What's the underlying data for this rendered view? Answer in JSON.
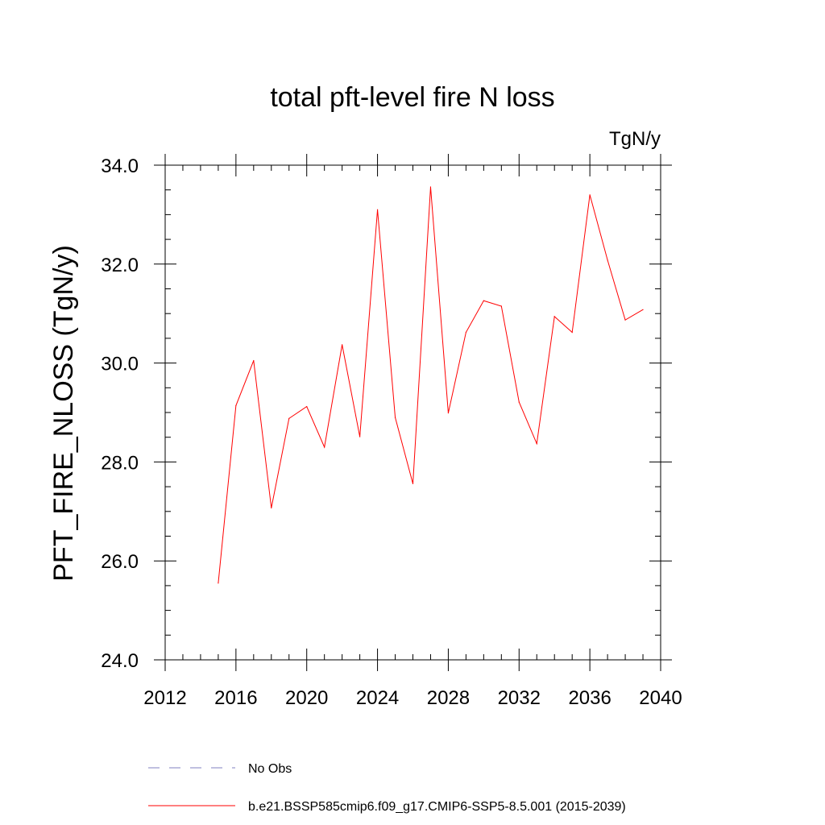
{
  "chart_data": {
    "type": "line",
    "title": "total pft-level fire N loss",
    "units": "TgN/y",
    "ylabel": "PFT_FIRE_NLOSS  (TgN/y)",
    "xlabel": "",
    "xlim": [
      2012,
      2040
    ],
    "ylim": [
      24.0,
      34.0
    ],
    "x_ticks": [
      2012,
      2016,
      2020,
      2024,
      2028,
      2032,
      2036,
      2040
    ],
    "x_tick_labels": [
      "2012",
      "2016",
      "2020",
      "2024",
      "2028",
      "2032",
      "2036",
      "2040"
    ],
    "y_ticks": [
      24.0,
      26.0,
      28.0,
      30.0,
      32.0,
      34.0
    ],
    "y_tick_labels": [
      "24.0",
      "26.0",
      "28.0",
      "30.0",
      "32.0",
      "34.0"
    ],
    "x_minor_step": 1,
    "y_minor_step": 0.5,
    "grid": false,
    "legend_placement": "bottom",
    "series": [
      {
        "name": "b.e21.BSSP585cmip6.f09_g17.CMIP6-SSP5-8.5.001 (2015-2039)",
        "color": "#ff0000",
        "style": "solid",
        "x": [
          2015,
          2016,
          2017,
          2018,
          2019,
          2020,
          2021,
          2022,
          2023,
          2024,
          2025,
          2026,
          2027,
          2028,
          2029,
          2030,
          2031,
          2032,
          2033,
          2034,
          2035,
          2036,
          2037,
          2038,
          2039
        ],
        "y": [
          25.55,
          29.14,
          30.05,
          27.07,
          28.88,
          29.12,
          28.3,
          30.37,
          28.51,
          33.1,
          28.9,
          27.56,
          33.56,
          28.99,
          30.62,
          31.26,
          31.15,
          29.21,
          28.37,
          30.94,
          30.62,
          33.4,
          32.08,
          30.87,
          31.08
        ]
      },
      {
        "name": "No Obs",
        "color": "#8080c0",
        "style": "dashed",
        "x": [],
        "y": []
      }
    ]
  }
}
